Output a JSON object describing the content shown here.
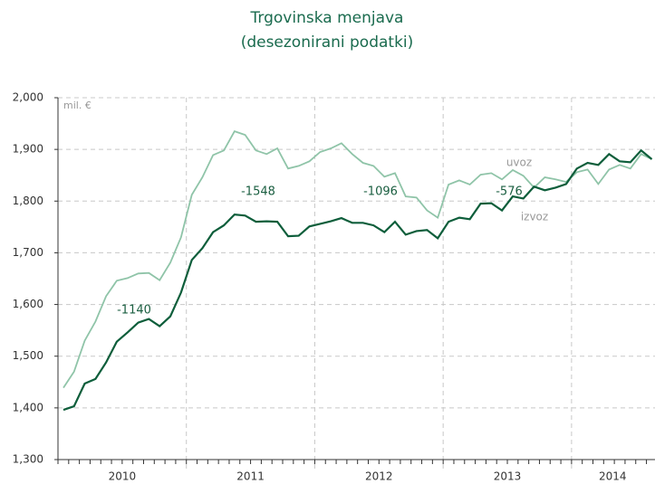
{
  "chart_data": {
    "type": "line",
    "title": [
      "Trgovinska menjava",
      "(desezonirani podatki)"
    ],
    "y_unit": "mil. €",
    "x": [
      2010.042,
      2010.125,
      2010.208,
      2010.292,
      2010.375,
      2010.458,
      2010.542,
      2010.625,
      2010.708,
      2010.792,
      2010.875,
      2010.958,
      2011.042,
      2011.125,
      2011.208,
      2011.292,
      2011.375,
      2011.458,
      2011.542,
      2011.625,
      2011.708,
      2011.792,
      2011.875,
      2011.958,
      2012.042,
      2012.125,
      2012.208,
      2012.292,
      2012.375,
      2012.458,
      2012.542,
      2012.625,
      2012.708,
      2012.792,
      2012.875,
      2012.958,
      2013.042,
      2013.125,
      2013.208,
      2013.292,
      2013.375,
      2013.458,
      2013.542,
      2013.625,
      2013.708,
      2013.792,
      2013.875,
      2013.958,
      2014.042,
      2014.125,
      2014.208,
      2014.292,
      2014.375,
      2014.458,
      2014.542,
      2014.625
    ],
    "series": [
      {
        "name": "uvoz",
        "color": "#8fc4a8",
        "values": [
          1439,
          1470,
          1530,
          1567,
          1616,
          1646,
          1651,
          1660,
          1661,
          1647,
          1681,
          1730,
          1812,
          1846,
          1889,
          1898,
          1935,
          1928,
          1898,
          1891,
          1902,
          1863,
          1868,
          1877,
          1895,
          1902,
          1912,
          1891,
          1874,
          1868,
          1847,
          1854,
          1809,
          1807,
          1782,
          1768,
          1832,
          1840,
          1832,
          1851,
          1854,
          1842,
          1860,
          1849,
          1826,
          1846,
          1842,
          1837,
          1856,
          1861,
          1833,
          1861,
          1870,
          1863,
          1891,
          1881
        ]
      },
      {
        "name": "izvoz",
        "color": "#0e5e3b",
        "values": [
          1396,
          1403,
          1447,
          1456,
          1488,
          1528,
          1546,
          1565,
          1572,
          1558,
          1577,
          1623,
          1686,
          1709,
          1740,
          1753,
          1774,
          1772,
          1760,
          1761,
          1760,
          1732,
          1733,
          1751,
          1756,
          1761,
          1767,
          1758,
          1758,
          1753,
          1740,
          1760,
          1735,
          1742,
          1744,
          1728,
          1760,
          1768,
          1765,
          1795,
          1796,
          1782,
          1809,
          1805,
          1828,
          1821,
          1826,
          1833,
          1863,
          1874,
          1870,
          1891,
          1877,
          1875,
          1898,
          1881
        ]
      }
    ],
    "annotations": [
      "-1140",
      "-1548",
      "-1096",
      "-576"
    ],
    "xlim": [
      2010,
      2014.65
    ],
    "year_labels": [
      {
        "value": 2010.5,
        "label": "2010"
      },
      {
        "value": 2011.5,
        "label": "2011"
      },
      {
        "value": 2012.5,
        "label": "2012"
      },
      {
        "value": 2013.5,
        "label": "2013"
      },
      {
        "value": 2014.32,
        "label": "2014"
      }
    ],
    "year_boundaries": [
      2011,
      2012,
      2013,
      2014
    ],
    "ylim": [
      1300,
      2000
    ],
    "yticks": [
      {
        "value": 1300,
        "label": "1,300"
      },
      {
        "value": 1400,
        "label": "1,400"
      },
      {
        "value": 1500,
        "label": "1,500"
      },
      {
        "value": 1600,
        "label": "1,600"
      },
      {
        "value": 1700,
        "label": "1,700"
      },
      {
        "value": 1800,
        "label": "1,800"
      },
      {
        "value": 1900,
        "label": "1,900"
      },
      {
        "value": 2000,
        "label": "2,000"
      }
    ],
    "grid": true
  }
}
